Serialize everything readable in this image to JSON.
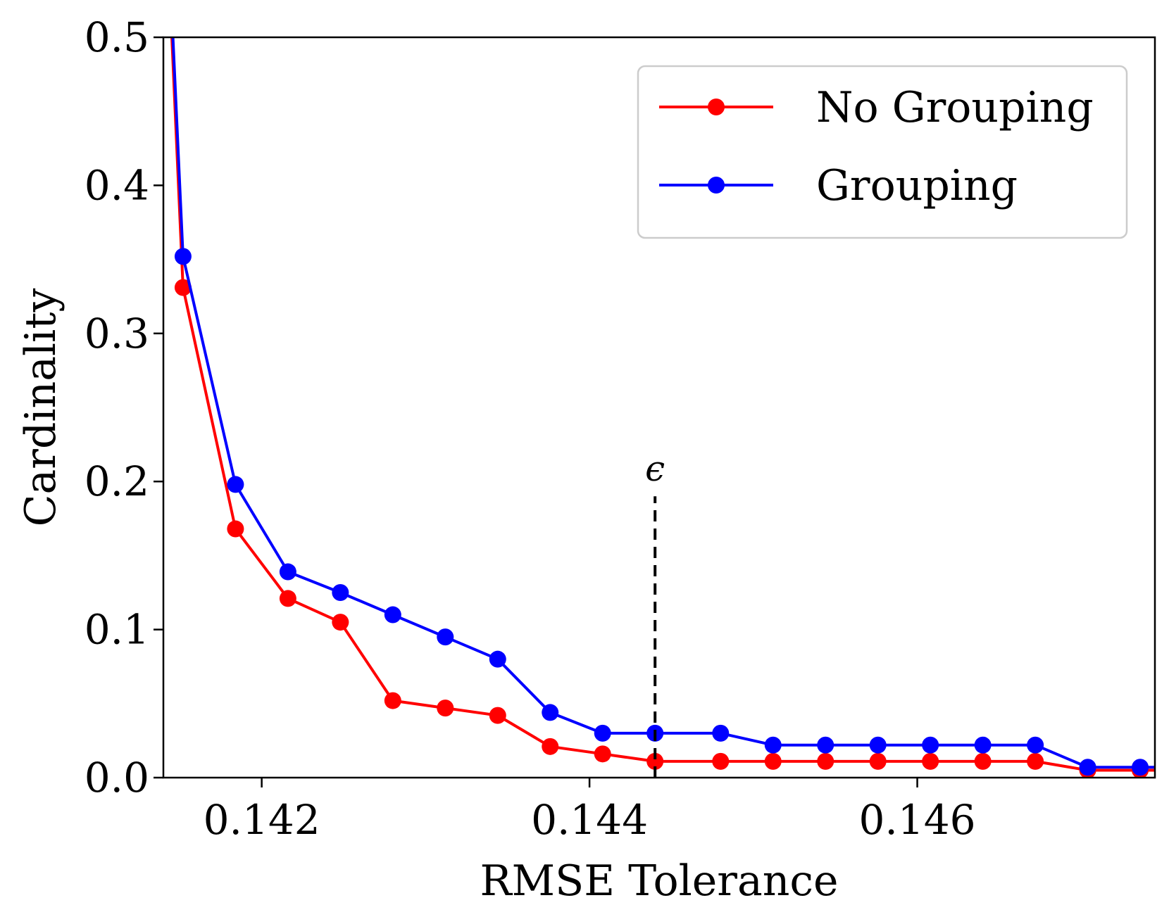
{
  "chart_data": {
    "type": "line",
    "xlabel": "RMSE Tolerance",
    "ylabel": "Cardinality",
    "xlim": [
      0.1414,
      0.14745
    ],
    "ylim": [
      0.0,
      0.5
    ],
    "xticks": [
      {
        "value": 0.142,
        "label": "0.142"
      },
      {
        "value": 0.144,
        "label": "0.144"
      },
      {
        "value": 0.146,
        "label": "0.146"
      }
    ],
    "yticks": [
      {
        "value": 0.0,
        "label": "0.0"
      },
      {
        "value": 0.1,
        "label": "0.1"
      },
      {
        "value": 0.2,
        "label": "0.2"
      },
      {
        "value": 0.3,
        "label": "0.3"
      },
      {
        "value": 0.4,
        "label": "0.4"
      },
      {
        "value": 0.5,
        "label": "0.5"
      }
    ],
    "legend_position": "top-right",
    "grid": false,
    "series": [
      {
        "name": "No Grouping",
        "color": "#ff0000",
        "x": [
          0.14125,
          0.14152,
          0.14184,
          0.14216,
          0.14248,
          0.1428,
          0.14312,
          0.14344,
          0.14376,
          0.14408,
          0.1444,
          0.1448,
          0.14512,
          0.14544,
          0.14576,
          0.14608,
          0.1464,
          0.14672,
          0.14704,
          0.14736,
          0.14768
        ],
        "y": [
          1.0,
          0.331,
          0.168,
          0.121,
          0.105,
          0.052,
          0.047,
          0.042,
          0.021,
          0.016,
          0.011,
          0.011,
          0.011,
          0.011,
          0.011,
          0.011,
          0.011,
          0.011,
          0.005,
          0.005,
          0.005
        ]
      },
      {
        "name": "Grouping",
        "color": "#0000ff",
        "x": [
          0.14125,
          0.14152,
          0.14184,
          0.14216,
          0.14248,
          0.1428,
          0.14312,
          0.14344,
          0.14376,
          0.14408,
          0.1444,
          0.1448,
          0.14512,
          0.14544,
          0.14576,
          0.14608,
          0.1464,
          0.14672,
          0.14704,
          0.14736,
          0.14768
        ],
        "y": [
          1.0,
          0.352,
          0.198,
          0.139,
          0.125,
          0.11,
          0.095,
          0.08,
          0.044,
          0.03,
          0.03,
          0.03,
          0.022,
          0.022,
          0.022,
          0.022,
          0.022,
          0.022,
          0.007,
          0.007,
          0.007
        ]
      }
    ],
    "annotation": {
      "label": "ϵ",
      "x": 0.1444,
      "y_from": 0.0,
      "y_to": 0.19,
      "style": "dashed",
      "color": "#000000"
    }
  }
}
